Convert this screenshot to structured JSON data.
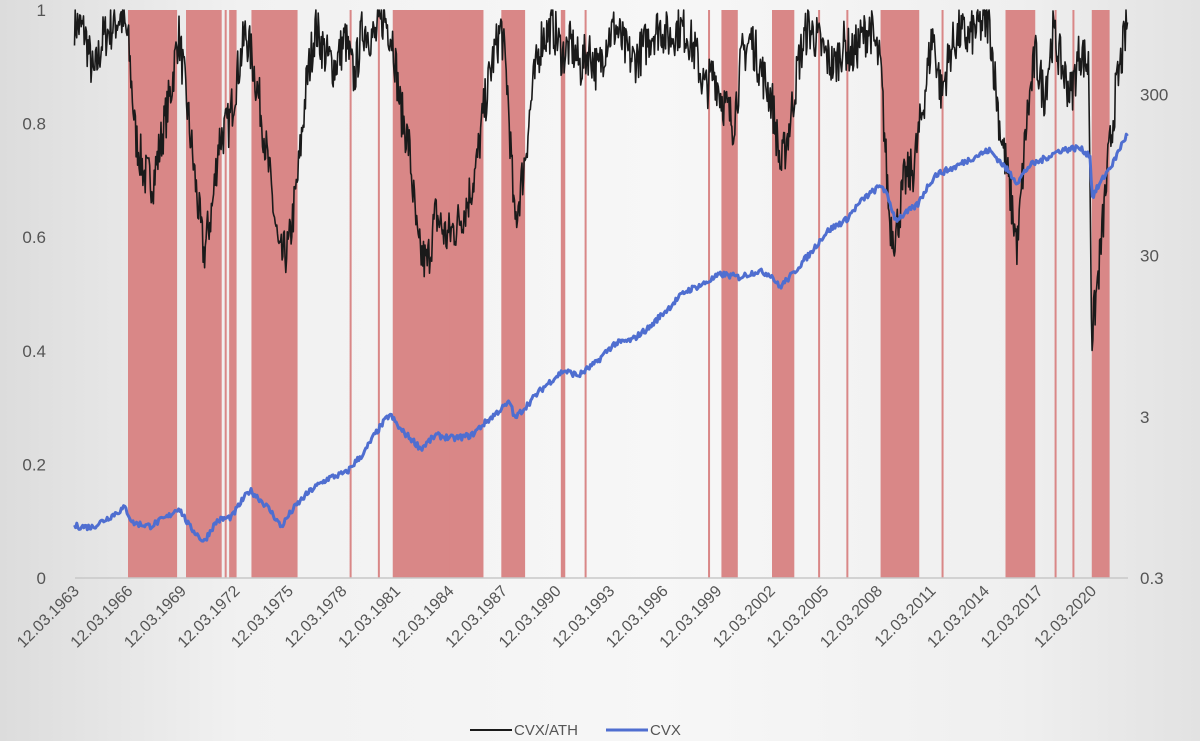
{
  "chart_data": {
    "type": "line",
    "title": "",
    "series": [
      {
        "name": "CVX/ATH",
        "axis": "left",
        "color": "#1a1a1a"
      },
      {
        "name": "CVX",
        "axis": "right",
        "color": "#4f6ed0",
        "scale": "log"
      }
    ],
    "x_range": [
      "1963-03-12",
      "2022-03-12"
    ],
    "left_axis": {
      "range": [
        0,
        1
      ],
      "ticks": [
        "0",
        "0.2",
        "0.4",
        "0.6",
        "0.8",
        "1"
      ]
    },
    "right_axis": {
      "scale": "log",
      "range": [
        0.3,
        1000
      ],
      "ticks": [
        "0.3",
        "3",
        "30",
        "300"
      ]
    },
    "x_ticks": [
      "12.03.1963",
      "12.03.1966",
      "12.03.1969",
      "12.03.1972",
      "12.03.1975",
      "12.03.1978",
      "12.03.1981",
      "12.03.1984",
      "12.03.1987",
      "12.03.1990",
      "12.03.1993",
      "12.03.1996",
      "12.03.1999",
      "12.03.2002",
      "12.03.2005",
      "12.03.2008",
      "12.03.2011",
      "12.03.2014",
      "12.03.2017",
      "12.03.2020"
    ],
    "shaded_periods": [
      [
        "1966-03",
        "1968-12"
      ],
      [
        "1969-06",
        "1971-06"
      ],
      [
        "1971-11",
        "1972-04"
      ],
      [
        "1973-02",
        "1975-09"
      ],
      [
        "1981-01",
        "1986-02"
      ],
      [
        "1987-02",
        "1988-06"
      ],
      [
        "1990-06",
        "1990-09"
      ],
      [
        "1999-06",
        "2000-05"
      ],
      [
        "2002-04",
        "2003-07"
      ],
      [
        "2008-05",
        "2010-07"
      ],
      [
        "2015-05",
        "2017-01"
      ],
      [
        "2020-03",
        "2021-03"
      ]
    ],
    "thin_shaded_dates": [
      "1971-08",
      "1978-08",
      "1980-03",
      "1984-02",
      "1991-10",
      "1998-09",
      "2004-11",
      "2006-06",
      "2011-10",
      "2018-02",
      "2019-02"
    ],
    "shade_color": "#d98787",
    "cvx_ath_points": [
      [
        "1963-03",
        0.98
      ],
      [
        "1963-10",
        0.96
      ],
      [
        "1964-04",
        0.88
      ],
      [
        "1964-10",
        0.95
      ],
      [
        "1965-04",
        0.97
      ],
      [
        "1965-10",
        0.99
      ],
      [
        "1966-03",
        0.95
      ],
      [
        "1966-08",
        0.78
      ],
      [
        "1967-02",
        0.71
      ],
      [
        "1967-08",
        0.7
      ],
      [
        "1968-02",
        0.78
      ],
      [
        "1968-08",
        0.86
      ],
      [
        "1969-01",
        0.96
      ],
      [
        "1969-06",
        0.85
      ],
      [
        "1970-01",
        0.68
      ],
      [
        "1970-06",
        0.57
      ],
      [
        "1970-12",
        0.66
      ],
      [
        "1971-04",
        0.77
      ],
      [
        "1971-11",
        0.8
      ],
      [
        "1972-04",
        0.88
      ],
      [
        "1972-10",
        0.96
      ],
      [
        "1973-02",
        0.92
      ],
      [
        "1973-08",
        0.83
      ],
      [
        "1974-03",
        0.69
      ],
      [
        "1974-09",
        0.56
      ],
      [
        "1975-03",
        0.58
      ],
      [
        "1975-09",
        0.7
      ],
      [
        "1976-03",
        0.87
      ],
      [
        "1976-09",
        0.97
      ],
      [
        "1977-04",
        0.92
      ],
      [
        "1977-10",
        0.9
      ],
      [
        "1978-05",
        0.95
      ],
      [
        "1978-11",
        0.88
      ],
      [
        "1979-05",
        0.97
      ],
      [
        "1980-01",
        0.95
      ],
      [
        "1980-07",
        0.99
      ],
      [
        "1981-01",
        0.95
      ],
      [
        "1981-06",
        0.83
      ],
      [
        "1981-12",
        0.76
      ],
      [
        "1982-06",
        0.58
      ],
      [
        "1982-12",
        0.55
      ],
      [
        "1983-06",
        0.64
      ],
      [
        "1984-01",
        0.6
      ],
      [
        "1984-08",
        0.62
      ],
      [
        "1985-03",
        0.66
      ],
      [
        "1985-09",
        0.72
      ],
      [
        "1986-02",
        0.82
      ],
      [
        "1986-08",
        0.91
      ],
      [
        "1987-02",
        0.97
      ],
      [
        "1987-06",
        0.87
      ],
      [
        "1987-11",
        0.62
      ],
      [
        "1988-05",
        0.72
      ],
      [
        "1988-11",
        0.86
      ],
      [
        "1989-05",
        0.95
      ],
      [
        "1990-01",
        0.97
      ],
      [
        "1990-07",
        0.92
      ],
      [
        "1991-01",
        0.94
      ],
      [
        "1991-07",
        0.9
      ],
      [
        "1992-01",
        0.93
      ],
      [
        "1992-07",
        0.89
      ],
      [
        "1993-01",
        0.95
      ],
      [
        "1993-07",
        0.97
      ],
      [
        "1994-01",
        0.93
      ],
      [
        "1994-07",
        0.91
      ],
      [
        "1995-01",
        0.93
      ],
      [
        "1995-07",
        0.96
      ],
      [
        "1996-01",
        0.97
      ],
      [
        "1996-07",
        0.95
      ],
      [
        "1997-01",
        0.97
      ],
      [
        "1997-07",
        0.96
      ],
      [
        "1998-01",
        0.92
      ],
      [
        "1998-07",
        0.86
      ],
      [
        "1999-01",
        0.89
      ],
      [
        "1999-07",
        0.84
      ],
      [
        "2000-02",
        0.8
      ],
      [
        "2000-08",
        0.92
      ],
      [
        "2001-02",
        0.95
      ],
      [
        "2001-08",
        0.9
      ],
      [
        "2002-04",
        0.84
      ],
      [
        "2002-10",
        0.72
      ],
      [
        "2003-04",
        0.8
      ],
      [
        "2003-10",
        0.91
      ],
      [
        "2004-04",
        0.97
      ],
      [
        "2004-10",
        0.95
      ],
      [
        "2005-04",
        0.92
      ],
      [
        "2005-10",
        0.9
      ],
      [
        "2006-04",
        0.94
      ],
      [
        "2006-10",
        0.92
      ],
      [
        "2007-04",
        0.95
      ],
      [
        "2007-10",
        0.97
      ],
      [
        "2008-05",
        0.9
      ],
      [
        "2008-11",
        0.63
      ],
      [
        "2009-03",
        0.6
      ],
      [
        "2009-09",
        0.7
      ],
      [
        "2010-03",
        0.72
      ],
      [
        "2010-09",
        0.82
      ],
      [
        "2011-04",
        0.96
      ],
      [
        "2011-10",
        0.85
      ],
      [
        "2012-04",
        0.93
      ],
      [
        "2012-10",
        0.96
      ],
      [
        "2013-04",
        0.95
      ],
      [
        "2013-10",
        0.97
      ],
      [
        "2014-06",
        0.98
      ],
      [
        "2015-01",
        0.8
      ],
      [
        "2015-08",
        0.68
      ],
      [
        "2016-01",
        0.58
      ],
      [
        "2016-07",
        0.8
      ],
      [
        "2017-01",
        0.92
      ],
      [
        "2017-07",
        0.85
      ],
      [
        "2018-01",
        0.96
      ],
      [
        "2018-07",
        0.9
      ],
      [
        "2019-01",
        0.85
      ],
      [
        "2019-07",
        0.93
      ],
      [
        "2020-01",
        0.9
      ],
      [
        "2020-03",
        0.42
      ],
      [
        "2020-08",
        0.55
      ],
      [
        "2021-02",
        0.73
      ],
      [
        "2021-07",
        0.85
      ],
      [
        "2022-03",
        0.98
      ]
    ],
    "cvx_points": [
      [
        "1963-03",
        0.63
      ],
      [
        "1964-03",
        0.62
      ],
      [
        "1965-03",
        0.72
      ],
      [
        "1966-01",
        0.82
      ],
      [
        "1966-06",
        0.66
      ],
      [
        "1967-06",
        0.63
      ],
      [
        "1968-06",
        0.72
      ],
      [
        "1969-01",
        0.82
      ],
      [
        "1969-08",
        0.63
      ],
      [
        "1970-06",
        0.5
      ],
      [
        "1971-03",
        0.68
      ],
      [
        "1972-01",
        0.72
      ],
      [
        "1973-01",
        1.05
      ],
      [
        "1974-01",
        0.82
      ],
      [
        "1974-10",
        0.62
      ],
      [
        "1975-06",
        0.8
      ],
      [
        "1976-06",
        1.05
      ],
      [
        "1977-06",
        1.25
      ],
      [
        "1978-06",
        1.35
      ],
      [
        "1979-06",
        1.8
      ],
      [
        "1980-06",
        2.7
      ],
      [
        "1980-11",
        3.1
      ],
      [
        "1981-06",
        2.5
      ],
      [
        "1982-08",
        1.9
      ],
      [
        "1983-06",
        2.3
      ],
      [
        "1984-06",
        2.2
      ],
      [
        "1985-06",
        2.3
      ],
      [
        "1986-06",
        2.9
      ],
      [
        "1987-08",
        3.7
      ],
      [
        "1987-11",
        2.9
      ],
      [
        "1988-08",
        3.6
      ],
      [
        "1989-08",
        4.7
      ],
      [
        "1990-08",
        5.8
      ],
      [
        "1991-06",
        5.4
      ],
      [
        "1992-06",
        6.5
      ],
      [
        "1993-06",
        8.5
      ],
      [
        "1994-06",
        9.0
      ],
      [
        "1995-06",
        10.8
      ],
      [
        "1996-06",
        14.0
      ],
      [
        "1997-06",
        18.0
      ],
      [
        "1998-06",
        20.0
      ],
      [
        "1999-06",
        23.0
      ],
      [
        "2000-06",
        22.0
      ],
      [
        "2001-06",
        24.0
      ],
      [
        "2002-03",
        23.0
      ],
      [
        "2002-09",
        19.0
      ],
      [
        "2003-06",
        23.0
      ],
      [
        "2004-06",
        31.0
      ],
      [
        "2005-06",
        43.0
      ],
      [
        "2006-06",
        50.0
      ],
      [
        "2007-06",
        68.0
      ],
      [
        "2008-06",
        82.0
      ],
      [
        "2009-03",
        50.0
      ],
      [
        "2009-09",
        54.0
      ],
      [
        "2010-06",
        62.0
      ],
      [
        "2011-06",
        95.0
      ],
      [
        "2012-06",
        105.0
      ],
      [
        "2013-06",
        120.0
      ],
      [
        "2014-06",
        135.0
      ],
      [
        "2015-06",
        102.0
      ],
      [
        "2016-01",
        85.0
      ],
      [
        "2016-09",
        108.0
      ],
      [
        "2017-06",
        118.0
      ],
      [
        "2018-06",
        135.0
      ],
      [
        "2019-06",
        140.0
      ],
      [
        "2020-02",
        125.0
      ],
      [
        "2020-03",
        68.0
      ],
      [
        "2020-09",
        85.0
      ],
      [
        "2021-06",
        115.0
      ],
      [
        "2022-03",
        170.0
      ]
    ]
  }
}
